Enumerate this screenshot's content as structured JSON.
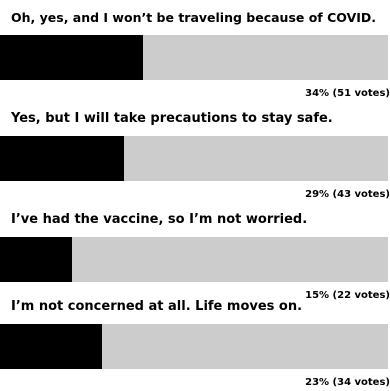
{
  "poll": {
    "options": [
      {
        "label": "Oh, yes, and I won’t be traveling because of COVID.",
        "percent_text": "34%",
        "votes_text": "(51 votes)",
        "percent": 34,
        "votes": 51
      },
      {
        "label": "Yes, but I will take precautions to stay safe.",
        "percent_text": "29%",
        "votes_text": "(43 votes)",
        "percent": 29,
        "votes": 43
      },
      {
        "label": "I’ve had the vaccine, so I’m not worried.",
        "percent_text": "15%",
        "votes_text": "(22 votes)",
        "percent": 15,
        "votes": 22
      },
      {
        "label": "I’m not concerned at all. Life moves on.",
        "percent_text": "23%",
        "votes_text": "(34 votes)",
        "percent": 23,
        "votes": 34
      }
    ],
    "colors": {
      "fill": "#000000",
      "track": "#cccccc",
      "text": "#000000",
      "background": "#ffffff"
    }
  }
}
